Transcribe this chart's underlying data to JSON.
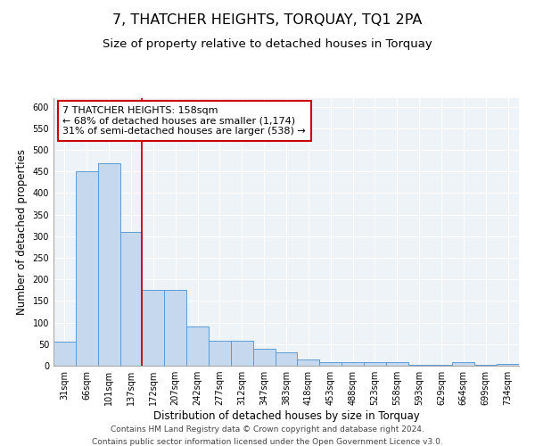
{
  "title": "7, THATCHER HEIGHTS, TORQUAY, TQ1 2PA",
  "subtitle": "Size of property relative to detached houses in Torquay",
  "xlabel": "Distribution of detached houses by size in Torquay",
  "ylabel": "Number of detached properties",
  "footnote1": "Contains HM Land Registry data © Crown copyright and database right 2024.",
  "footnote2": "Contains public sector information licensed under the Open Government Licence v3.0.",
  "bar_labels": [
    "31sqm",
    "66sqm",
    "101sqm",
    "137sqm",
    "172sqm",
    "207sqm",
    "242sqm",
    "277sqm",
    "312sqm",
    "347sqm",
    "383sqm",
    "418sqm",
    "453sqm",
    "488sqm",
    "523sqm",
    "558sqm",
    "593sqm",
    "629sqm",
    "664sqm",
    "699sqm",
    "734sqm"
  ],
  "bar_values": [
    55,
    450,
    470,
    310,
    175,
    175,
    90,
    58,
    58,
    40,
    30,
    15,
    8,
    8,
    8,
    8,
    2,
    2,
    8,
    2,
    4
  ],
  "bar_color": "#c5d8ed",
  "bar_edge_color": "#5b9bd5",
  "vline_color": "#cc0000",
  "annotation_title": "7 THATCHER HEIGHTS: 158sqm",
  "annotation_line1": "← 68% of detached houses are smaller (1,174)",
  "annotation_line2": "31% of semi-detached houses are larger (538) →",
  "annotation_box_color": "#ffffff",
  "annotation_box_edge": "#cc0000",
  "ylim": [
    0,
    620
  ],
  "yticks": [
    0,
    50,
    100,
    150,
    200,
    250,
    300,
    350,
    400,
    450,
    500,
    550,
    600
  ],
  "background_color": "#eef3f8",
  "grid_color": "#ffffff",
  "title_fontsize": 11.5,
  "subtitle_fontsize": 9.5,
  "axis_label_fontsize": 8.5,
  "tick_fontsize": 7,
  "annotation_fontsize": 8,
  "footnote_fontsize": 6.5
}
